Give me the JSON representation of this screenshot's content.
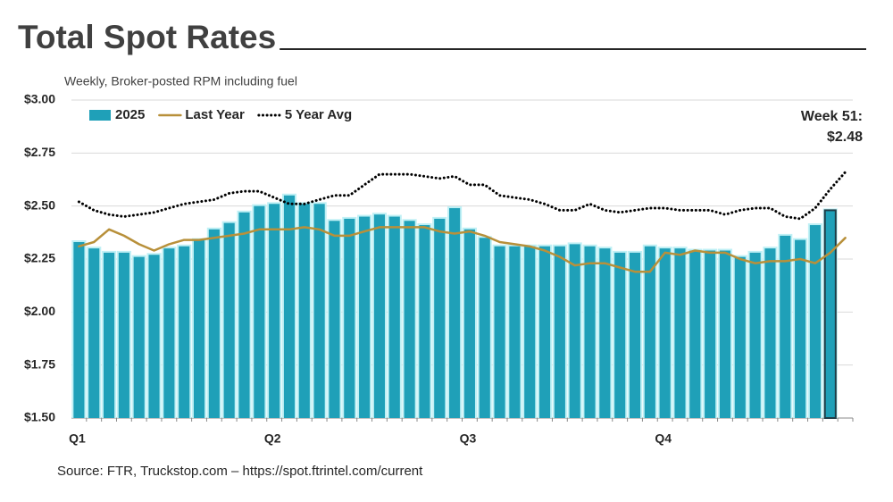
{
  "chart_data": {
    "type": "bar",
    "title": "Total Spot Rates",
    "subtitle": "Weekly, Broker-posted RPM including fuel",
    "source": "Source: FTR, Truckstop.com – https://spot.ftrintel.com/current",
    "annotation": [
      "Week 51:",
      "$2.48"
    ],
    "categories": [
      "Q1",
      null,
      null,
      null,
      null,
      null,
      null,
      null,
      null,
      null,
      null,
      null,
      null,
      "Q2",
      null,
      null,
      null,
      null,
      null,
      null,
      null,
      null,
      null,
      null,
      null,
      null,
      "Q3",
      null,
      null,
      null,
      null,
      null,
      null,
      null,
      null,
      null,
      null,
      null,
      null,
      "Q4",
      null,
      null,
      null,
      null,
      null,
      null,
      null,
      null,
      null,
      null,
      null,
      null
    ],
    "series": [
      {
        "name": "2025",
        "color": "#1fa0b8",
        "type": "bar",
        "values": [
          2.33,
          2.3,
          2.28,
          2.28,
          2.26,
          2.27,
          2.3,
          2.31,
          2.34,
          2.39,
          2.42,
          2.47,
          2.5,
          2.51,
          2.55,
          2.51,
          2.51,
          2.43,
          2.44,
          2.45,
          2.46,
          2.45,
          2.43,
          2.41,
          2.44,
          2.49,
          2.39,
          2.35,
          2.31,
          2.31,
          2.31,
          2.31,
          2.31,
          2.32,
          2.31,
          2.3,
          2.28,
          2.28,
          2.31,
          2.3,
          2.3,
          2.29,
          2.29,
          2.29,
          2.26,
          2.28,
          2.3,
          2.36,
          2.34,
          2.41,
          2.48,
          null
        ]
      },
      {
        "name": "Last Year",
        "color": "#b8903a",
        "type": "line",
        "values": [
          2.31,
          2.33,
          2.39,
          2.36,
          2.32,
          2.29,
          2.32,
          2.34,
          2.34,
          2.35,
          2.36,
          2.37,
          2.39,
          2.39,
          2.39,
          2.4,
          2.39,
          2.36,
          2.36,
          2.38,
          2.4,
          2.4,
          2.4,
          2.4,
          2.38,
          2.37,
          2.38,
          2.36,
          2.33,
          2.32,
          2.31,
          2.29,
          2.26,
          2.22,
          2.23,
          2.23,
          2.21,
          2.19,
          2.19,
          2.28,
          2.27,
          2.29,
          2.28,
          2.28,
          2.25,
          2.23,
          2.24,
          2.24,
          2.25,
          2.23,
          2.28,
          2.35
        ]
      },
      {
        "name": "5 Year Avg",
        "color": "#000000",
        "type": "dotted",
        "values": [
          2.52,
          2.48,
          2.46,
          2.45,
          2.46,
          2.47,
          2.49,
          2.51,
          2.52,
          2.53,
          2.56,
          2.57,
          2.57,
          2.54,
          2.51,
          2.51,
          2.53,
          2.55,
          2.55,
          2.6,
          2.65,
          2.65,
          2.65,
          2.64,
          2.63,
          2.64,
          2.6,
          2.6,
          2.55,
          2.54,
          2.53,
          2.51,
          2.48,
          2.48,
          2.51,
          2.48,
          2.47,
          2.48,
          2.49,
          2.49,
          2.48,
          2.48,
          2.48,
          2.46,
          2.48,
          2.49,
          2.49,
          2.45,
          2.44,
          2.49,
          2.58,
          2.66
        ]
      }
    ],
    "ylim": [
      1.5,
      3.0
    ],
    "yticks": [
      {
        "value": 1.5,
        "label": "$1.50"
      },
      {
        "value": 1.75,
        "label": "$1.75"
      },
      {
        "value": 2.0,
        "label": "$2.00"
      },
      {
        "value": 2.25,
        "label": "$2.25"
      },
      {
        "value": 2.5,
        "label": "$2.50"
      },
      {
        "value": 2.75,
        "label": "$2.75"
      },
      {
        "value": 3.0,
        "label": "$3.00"
      }
    ],
    "grid": true,
    "legend": "top-left"
  }
}
